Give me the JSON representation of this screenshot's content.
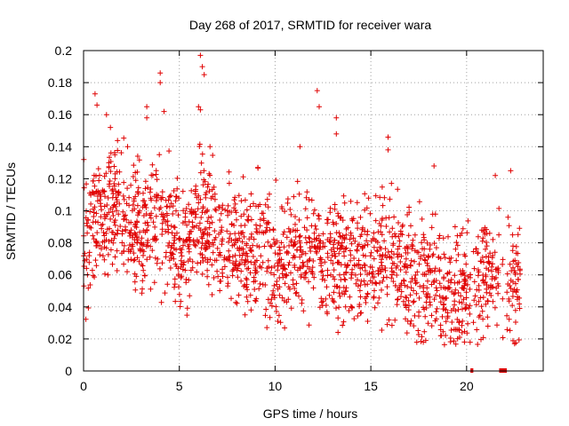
{
  "chart_data": {
    "type": "scatter",
    "title": "Day 268 of 2017, SRMTID for receiver wara",
    "xlabel": "GPS time / hours",
    "ylabel": "SRMTID / TECUs",
    "xlim": [
      0,
      24
    ],
    "ylim": [
      0,
      0.2
    ],
    "xticks": [
      0,
      5,
      10,
      15,
      20
    ],
    "yticks": [
      0,
      0.02,
      0.04,
      0.06,
      0.08,
      0.1,
      0.12,
      0.14,
      0.16,
      0.18,
      0.2
    ],
    "xtick_labels": [
      "0",
      "5",
      "10",
      "15",
      "20"
    ],
    "ytick_labels": [
      "0",
      "0.02",
      "0.04",
      "0.06",
      "0.08",
      "0.1",
      "0.12",
      "0.14",
      "0.16",
      "0.18",
      "0.2"
    ],
    "grid": true,
    "grid_style": "dotted",
    "marker": "+",
    "color": "#e00000",
    "x_range_of_data": [
      0,
      22.8
    ],
    "trend": {
      "x": [
        0,
        1,
        2,
        3,
        4,
        5,
        6,
        7,
        8,
        9,
        10,
        11,
        12,
        13,
        14,
        15,
        16,
        17,
        18,
        19,
        20,
        21,
        22,
        22.8
      ],
      "y": [
        0.08,
        0.1,
        0.1,
        0.085,
        0.1,
        0.075,
        0.095,
        0.085,
        0.075,
        0.07,
        0.068,
        0.07,
        0.072,
        0.07,
        0.065,
        0.068,
        0.07,
        0.06,
        0.055,
        0.05,
        0.055,
        0.06,
        0.06,
        0.06
      ]
    },
    "spikes": [
      {
        "x": 0.6,
        "y": 0.173
      },
      {
        "x": 0.7,
        "y": 0.166
      },
      {
        "x": 1.2,
        "y": 0.16
      },
      {
        "x": 1.4,
        "y": 0.152
      },
      {
        "x": 2.3,
        "y": 0.14
      },
      {
        "x": 3.3,
        "y": 0.165
      },
      {
        "x": 3.3,
        "y": 0.158
      },
      {
        "x": 4.0,
        "y": 0.186
      },
      {
        "x": 4.0,
        "y": 0.18
      },
      {
        "x": 4.2,
        "y": 0.162
      },
      {
        "x": 6.1,
        "y": 0.197
      },
      {
        "x": 6.2,
        "y": 0.19
      },
      {
        "x": 6.3,
        "y": 0.185
      },
      {
        "x": 6.0,
        "y": 0.165
      },
      {
        "x": 6.1,
        "y": 0.163
      },
      {
        "x": 6.6,
        "y": 0.14
      },
      {
        "x": 12.2,
        "y": 0.175
      },
      {
        "x": 12.3,
        "y": 0.165
      },
      {
        "x": 13.2,
        "y": 0.158
      },
      {
        "x": 13.2,
        "y": 0.148
      },
      {
        "x": 15.9,
        "y": 0.146
      },
      {
        "x": 15.9,
        "y": 0.138
      },
      {
        "x": 11.3,
        "y": 0.14
      },
      {
        "x": 18.3,
        "y": 0.128
      },
      {
        "x": 22.3,
        "y": 0.125
      },
      {
        "x": 21.5,
        "y": 0.122
      },
      {
        "x": 9.1,
        "y": 0.127
      }
    ],
    "zero_segments": [
      {
        "x_start": 20.2,
        "x_end": 20.35
      },
      {
        "x_start": 21.7,
        "x_end": 22.1
      }
    ]
  }
}
